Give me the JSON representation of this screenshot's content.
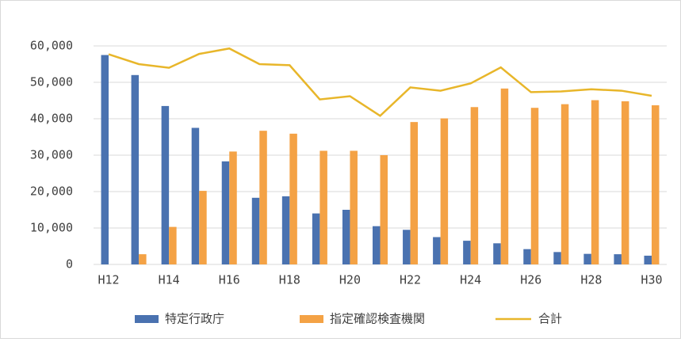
{
  "chart_data": {
    "type": "bar",
    "categories": [
      "H12",
      null,
      "H14",
      null,
      "H16",
      null,
      "H18",
      null,
      "H20",
      null,
      "H22",
      null,
      "H24",
      null,
      "H26",
      null,
      "H28",
      null,
      "H30"
    ],
    "series": [
      {
        "name": "特定行政庁",
        "type": "bar",
        "color": "#4a72b0",
        "values": [
          57500,
          52000,
          43500,
          37500,
          28300,
          18300,
          18700,
          14000,
          15000,
          10500,
          9500,
          7500,
          6500,
          5800,
          4200,
          3400,
          2900,
          2800,
          2400
        ]
      },
      {
        "name": "指定確認検査機関",
        "type": "bar",
        "color": "#f4a245",
        "values": [
          0,
          2800,
          10300,
          20200,
          31000,
          36700,
          35900,
          31200,
          31200,
          30000,
          39100,
          40100,
          43200,
          48300,
          43000,
          44000,
          45100,
          44800,
          43700
        ]
      },
      {
        "name": "合計",
        "type": "line",
        "color": "#e8b62a",
        "values": [
          57700,
          55000,
          54000,
          57800,
          59300,
          55000,
          54700,
          45300,
          46200,
          40800,
          48600,
          47700,
          49700,
          54100,
          47300,
          47500,
          48100,
          47700,
          46300
        ]
      }
    ],
    "ylim": [
      0,
      60000
    ],
    "yticks": [
      0,
      {
        "value": 10000,
        "label": "10,000"
      },
      {
        "value": 20000,
        "label": "20,000"
      },
      {
        "value": 30000,
        "label": "30,000"
      },
      {
        "value": 40000,
        "label": "40,000"
      },
      {
        "value": 50000,
        "label": "50,000"
      },
      {
        "value": 60000,
        "label": "60,000"
      }
    ],
    "grid": true,
    "legend": "bottom"
  }
}
